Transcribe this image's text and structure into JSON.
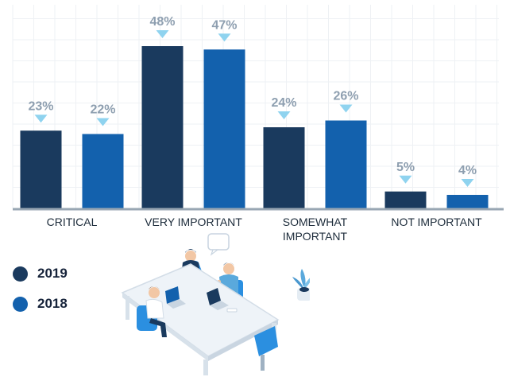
{
  "chart_data": {
    "type": "bar",
    "categories": [
      "CRITICAL",
      "VERY IMPORTANT",
      "SOMEWHAT IMPORTANT",
      "NOT IMPORTANT"
    ],
    "category_lines": [
      [
        "CRITICAL"
      ],
      [
        "VERY IMPORTANT"
      ],
      [
        "SOMEWHAT",
        "IMPORTANT"
      ],
      [
        "NOT IMPORTANT"
      ]
    ],
    "series": [
      {
        "name": "2019",
        "values": [
          23,
          48,
          24,
          5
        ],
        "labels": [
          "23%",
          "48%",
          "24%",
          "5%"
        ],
        "color": "#1a3a5e"
      },
      {
        "name": "2018",
        "values": [
          22,
          47,
          26,
          4
        ],
        "labels": [
          "22%",
          "47%",
          "26%",
          "4%"
        ],
        "color": "#1361ad"
      }
    ],
    "ylim": [
      0,
      50
    ],
    "grid": true,
    "legend_position": "bottom-left",
    "marker_color": "#8fd3ef",
    "baseline_color": "#98a6b3"
  },
  "legend": {
    "items": [
      {
        "label": "2019",
        "color": "#1a3a5e"
      },
      {
        "label": "2018",
        "color": "#1361ad"
      }
    ]
  },
  "illustration": {
    "icon": "office-team-meeting-icon"
  }
}
